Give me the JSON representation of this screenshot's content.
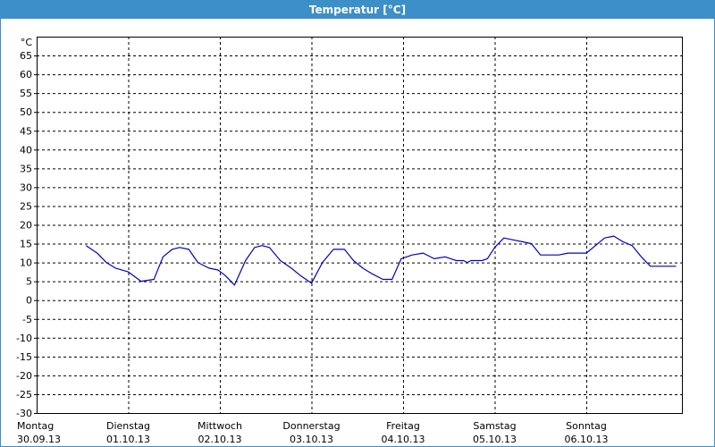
{
  "title": "Temperatur [°C]",
  "chart_data": {
    "type": "line",
    "title": "Temperatur [°C]",
    "y_unit_label": "°C",
    "ylim": [
      -30,
      70
    ],
    "yticks": [
      -30,
      -25,
      -20,
      -15,
      -10,
      -5,
      0,
      5,
      10,
      15,
      20,
      25,
      30,
      35,
      40,
      45,
      50,
      55,
      60,
      65
    ],
    "xlim": [
      0,
      7
    ],
    "grid": true,
    "x_categories": [
      {
        "day": "Montag",
        "date": "30.09.13"
      },
      {
        "day": "Dienstag",
        "date": "01.10.13"
      },
      {
        "day": "Mittwoch",
        "date": "02.10.13"
      },
      {
        "day": "Donnerstag",
        "date": "03.10.13"
      },
      {
        "day": "Freitag",
        "date": "04.10.13"
      },
      {
        "day": "Samstag",
        "date": "05.10.13"
      },
      {
        "day": "Sonntag",
        "date": "06.10.13"
      }
    ],
    "color": "#0000cc",
    "series": [
      {
        "x": [
          0.54,
          0.66,
          0.76,
          0.86,
          1.0,
          1.14,
          1.28,
          1.38,
          1.48,
          1.56,
          1.66,
          1.76,
          1.88,
          1.98,
          2.06,
          2.16,
          2.28,
          2.38,
          2.46,
          2.54,
          2.66,
          2.78,
          2.88,
          3.0,
          3.12,
          3.24,
          3.36,
          3.46,
          3.56,
          3.66,
          3.78,
          3.88,
          3.98,
          4.1,
          4.22,
          4.34,
          4.46,
          4.58,
          4.66,
          4.7,
          4.74,
          4.8,
          4.86,
          4.92,
          5.0,
          5.1,
          5.2,
          5.3,
          5.4,
          5.5,
          5.6,
          5.7,
          5.8,
          5.9,
          6.0,
          6.1,
          6.2,
          6.3,
          6.4,
          6.5,
          6.6,
          6.7,
          6.8,
          6.9,
          6.98
        ],
        "y": [
          14.5,
          12.5,
          10,
          8.5,
          7.5,
          5,
          5.5,
          11.5,
          13.5,
          14,
          13.5,
          10,
          8.5,
          8,
          6.5,
          4,
          10.5,
          14,
          14.5,
          14,
          10.5,
          8.5,
          6.5,
          4.5,
          10,
          13.5,
          13.5,
          10.5,
          8.5,
          7,
          5.5,
          5.5,
          11,
          12,
          12.5,
          11,
          11.5,
          10.5,
          10.5,
          10,
          10.5,
          10.5,
          10.5,
          11,
          14,
          16.5,
          16,
          15.5,
          15,
          12,
          12,
          12,
          12.5,
          12.5,
          12.5,
          14.5,
          16.5,
          17,
          15.5,
          14.5,
          11.5,
          9,
          9,
          9,
          9
        ]
      }
    ]
  }
}
